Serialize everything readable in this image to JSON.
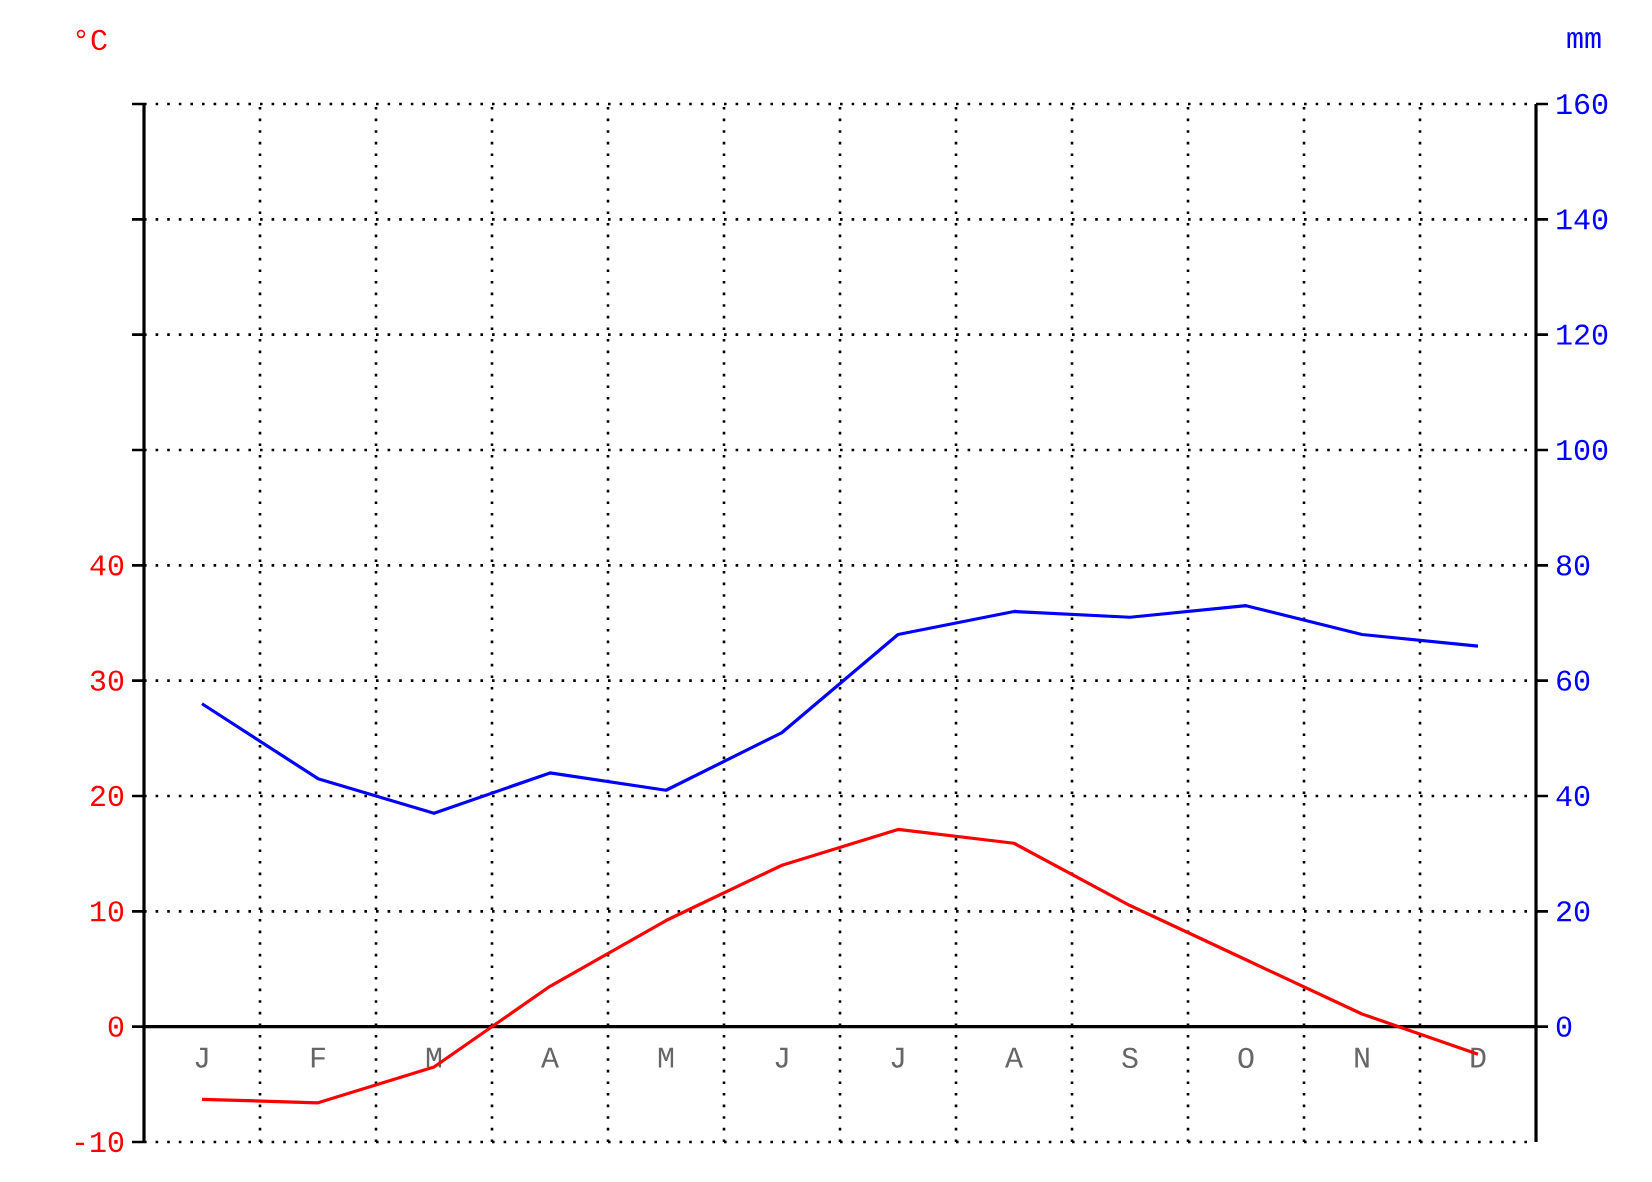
{
  "chart_data": {
    "type": "line",
    "ylabel": "°C",
    "y2label": "mm",
    "categories": [
      "J",
      "F",
      "M",
      "A",
      "M",
      "J",
      "J",
      "A",
      "S",
      "O",
      "N",
      "D"
    ],
    "series": [
      {
        "color": "#ff0000",
        "values": [
          -6.3,
          -6.6,
          -3.5,
          3.5,
          9.2,
          14,
          17.1,
          15.9,
          10.5,
          5.8,
          1.1,
          -2.4
        ]
      },
      {
        "color": "#0000ff",
        "axis": "y2",
        "values": [
          56,
          43,
          37,
          44,
          41,
          51,
          68,
          72,
          71,
          73,
          68,
          66
        ]
      }
    ],
    "ylim": [
      -10,
      80
    ],
    "yticks": [
      -10,
      0,
      10,
      20,
      30,
      40,
      {
        "value": 50,
        "label": null
      },
      {
        "value": 60,
        "label": null
      },
      {
        "value": 70,
        "label": null
      },
      {
        "value": 80,
        "label": null
      }
    ],
    "y2lim": [
      -20,
      160
    ],
    "y2ticks": [
      0,
      20,
      40,
      60,
      80,
      100,
      120,
      140,
      160
    ],
    "grid": true
  }
}
